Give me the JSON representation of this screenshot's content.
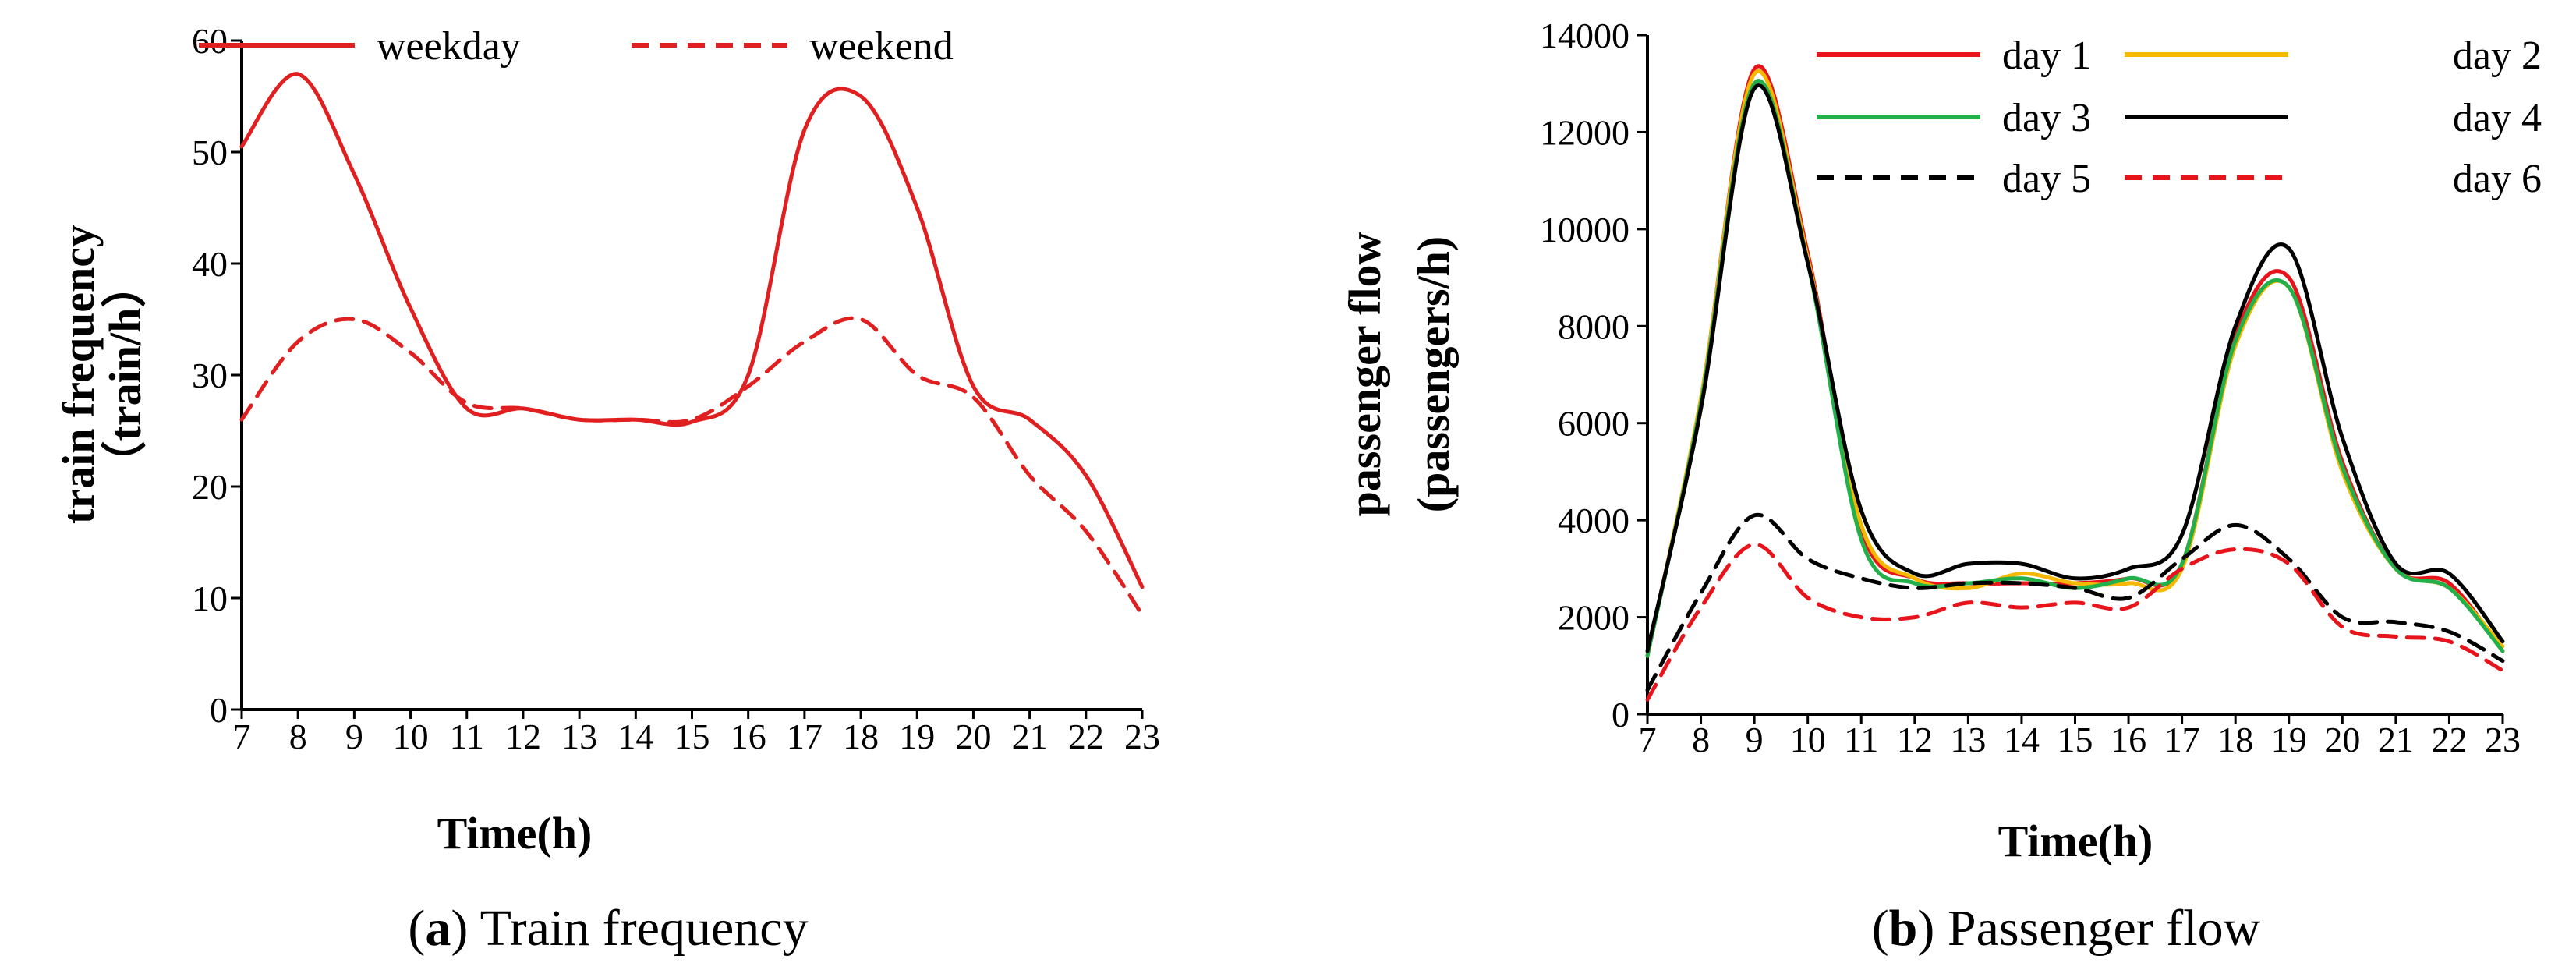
{
  "chart_data": [
    {
      "id": "a",
      "type": "line",
      "title": "",
      "xlabel": "Time(h)",
      "ylabel": "train  frequency",
      "ylabel2": "（train/h）",
      "x": [
        7,
        8,
        9,
        10,
        11,
        12,
        13,
        14,
        15,
        16,
        17,
        18,
        19,
        20,
        21,
        22,
        23
      ],
      "xlim": [
        7,
        23
      ],
      "ylim": [
        0,
        60
      ],
      "yticks": [
        0,
        10,
        20,
        30,
        40,
        50,
        60
      ],
      "legend_position": "top",
      "series": [
        {
          "name": "weekday",
          "color": "#e02020",
          "dash": "solid",
          "values": [
            50.5,
            57,
            48,
            36,
            27,
            27,
            26,
            26,
            25.8,
            30,
            52,
            55,
            45,
            29,
            26,
            21,
            11
          ]
        },
        {
          "name": "weekend",
          "color": "#e02020",
          "dash": "dashed",
          "values": [
            26,
            33,
            35,
            32,
            27.5,
            27,
            26,
            26,
            26,
            29,
            33,
            35,
            30,
            28,
            21,
            16,
            8.5
          ]
        }
      ],
      "caption_label": "a",
      "caption_text": "Train frequency"
    },
    {
      "id": "b",
      "type": "line",
      "title": "",
      "xlabel": "Time(h)",
      "ylabel": "passenger  flow",
      "ylabel2": "(passengers/h)",
      "x": [
        7,
        8,
        9,
        10,
        11,
        12,
        13,
        14,
        15,
        16,
        17,
        18,
        19,
        20,
        21,
        22,
        23
      ],
      "xlim": [
        7,
        23
      ],
      "ylim": [
        0,
        14000
      ],
      "yticks": [
        0,
        2000,
        4000,
        6000,
        8000,
        10000,
        12000,
        14000
      ],
      "legend_position": "top-right",
      "series": [
        {
          "name": "day 1",
          "color": "#e8141b",
          "dash": "solid",
          "values": [
            1200,
            6500,
            13300,
            9500,
            3800,
            2800,
            2700,
            2700,
            2700,
            2800,
            3100,
            7800,
            9000,
            5200,
            3000,
            2700,
            1300
          ]
        },
        {
          "name": "day 2",
          "color": "#f5b800",
          "dash": "solid",
          "values": [
            1200,
            6500,
            13200,
            9400,
            3900,
            2800,
            2600,
            2900,
            2700,
            2700,
            3000,
            7600,
            8800,
            5000,
            3000,
            2600,
            1400
          ]
        },
        {
          "name": "day 3",
          "color": "#22b04a",
          "dash": "solid",
          "values": [
            1200,
            6400,
            13000,
            9300,
            3600,
            2700,
            2700,
            2800,
            2600,
            2800,
            3100,
            7700,
            8800,
            5100,
            3000,
            2600,
            1300
          ]
        },
        {
          "name": "day 4",
          "color": "#000000",
          "dash": "solid",
          "values": [
            1300,
            6300,
            12900,
            9300,
            4200,
            2900,
            3100,
            3100,
            2800,
            3000,
            3700,
            8000,
            9600,
            5700,
            3100,
            2900,
            1500
          ]
        },
        {
          "name": "day 5",
          "color": "#000000",
          "dash": "dashed",
          "values": [
            500,
            2500,
            4100,
            3200,
            2800,
            2600,
            2700,
            2700,
            2600,
            2400,
            3200,
            3900,
            3200,
            2000,
            1900,
            1700,
            1100
          ]
        },
        {
          "name": "day 6",
          "color": "#e8141b",
          "dash": "dashed",
          "values": [
            300,
            2200,
            3500,
            2400,
            2000,
            2000,
            2300,
            2200,
            2300,
            2200,
            3000,
            3400,
            3100,
            1800,
            1600,
            1500,
            900
          ]
        }
      ],
      "caption_label": "b",
      "caption_text": "Passenger flow"
    }
  ]
}
